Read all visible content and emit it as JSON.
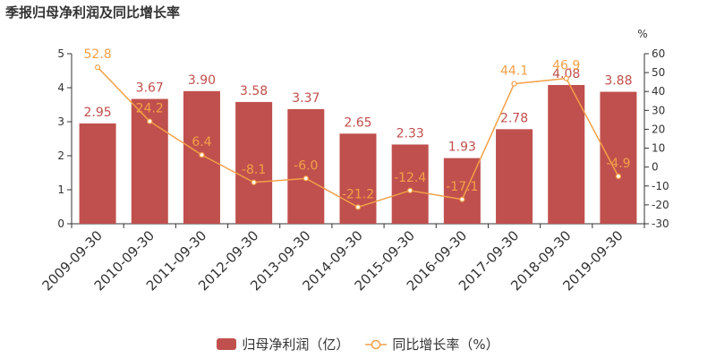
{
  "chart_data": {
    "type": "bar",
    "title": "季报归母净利润及同比增长率",
    "categories": [
      "2009-09-30",
      "2010-09-30",
      "2011-09-30",
      "2012-09-30",
      "2013-09-30",
      "2014-09-30",
      "2015-09-30",
      "2016-09-30",
      "2017-09-30",
      "2018-09-30",
      "2019-09-30"
    ],
    "series": [
      {
        "name": "归母净利润（亿）",
        "type": "bar",
        "axis": "left",
        "values": [
          2.95,
          3.67,
          3.9,
          3.58,
          3.37,
          2.65,
          2.33,
          1.93,
          2.78,
          4.08,
          3.88
        ],
        "labels": [
          "2.95",
          "3.67",
          "3.90",
          "3.58",
          "3.37",
          "2.65",
          "2.33",
          "1.93",
          "2.78",
          "4.08",
          "3.88"
        ]
      },
      {
        "name": "同比增长率（%）",
        "type": "line",
        "axis": "right",
        "values": [
          52.8,
          24.2,
          6.4,
          -8.1,
          -6.0,
          -21.2,
          -12.4,
          -17.1,
          44.1,
          46.9,
          -4.9
        ],
        "labels": [
          "52.8",
          "24.2",
          "6.4",
          "-8.1",
          "-6.0",
          "-21.2",
          "-12.4",
          "-17.1",
          "44.1",
          "46.9",
          "-4.9"
        ]
      }
    ],
    "y_left": {
      "min": 0,
      "max": 5,
      "ticks": [
        "0",
        "1",
        "2",
        "3",
        "4",
        "5"
      ]
    },
    "y_right": {
      "min": -30,
      "max": 60,
      "unit": "%",
      "ticks": [
        "-30",
        "-20",
        "-10",
        "0",
        "10",
        "20",
        "30",
        "40",
        "50",
        "60"
      ]
    },
    "grid": false,
    "legend_position": "bottom-center",
    "colors": {
      "bar": "#c0504d",
      "line": "#f4a048",
      "bar_label": "#c0504d",
      "line_label": "#f4a048",
      "axis": "#333333"
    }
  }
}
